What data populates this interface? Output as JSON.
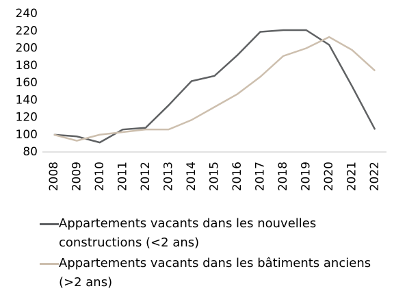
{
  "chart_data": {
    "type": "line",
    "categories": [
      "2008",
      "2009",
      "2010",
      "2011",
      "2012",
      "2013",
      "2014",
      "2015",
      "2016",
      "2017",
      "2018",
      "2019",
      "2020",
      "2021",
      "2022"
    ],
    "series": [
      {
        "name": "Appartements vacants dans les nouvelles constructions (<2 ans)",
        "color": "#5f6163",
        "values": [
          100,
          98,
          91,
          106,
          108,
          134,
          162,
          168,
          192,
          219,
          221,
          221,
          204,
          156,
          106
        ]
      },
      {
        "name": "Appartements vacants dans les bâtiments anciens (>2 ans)",
        "color": "#cdbfae",
        "values": [
          100,
          93,
          100,
          103,
          106,
          106,
          117,
          132,
          147,
          167,
          191,
          200,
          213,
          198,
          174
        ]
      }
    ],
    "ylim": [
      80,
      240
    ],
    "yticks": [
      80,
      100,
      120,
      140,
      160,
      180,
      200,
      220,
      240
    ],
    "grid": false
  }
}
